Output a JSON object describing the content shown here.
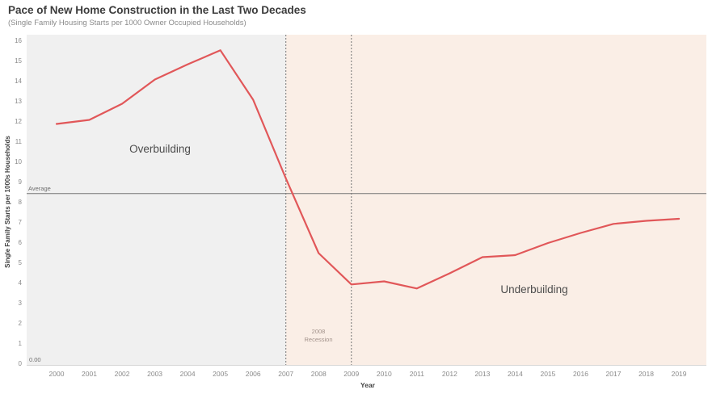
{
  "chart_data": {
    "type": "line",
    "title": "Pace of New Home Construction in the Last Two Decades",
    "subtitle": "(Single Family Housing Starts per 1000 Owner Occupied Households)",
    "xlabel": "Year",
    "ylabel": "Single Family Starts per 1000s Households",
    "x": [
      2000,
      2001,
      2002,
      2003,
      2004,
      2005,
      2006,
      2007,
      2008,
      2009,
      2010,
      2011,
      2012,
      2013,
      2014,
      2015,
      2016,
      2017,
      2018,
      2019
    ],
    "series": [
      {
        "name": "Single Family Housing Starts per 1000 Owner Occupied Households",
        "color": "#e15759",
        "values": [
          11.9,
          12.1,
          12.9,
          14.1,
          14.85,
          15.55,
          13.1,
          9.2,
          5.5,
          3.95,
          4.1,
          3.75,
          4.5,
          5.3,
          5.4,
          6.0,
          6.5,
          6.95,
          7.1,
          7.2
        ]
      }
    ],
    "ylim": [
      0,
      16
    ],
    "grid": false,
    "legend": "none",
    "reference_lines": [
      {
        "axis": "y",
        "value": 8.45,
        "label": "Average",
        "style": "solid",
        "color": "#757575"
      },
      {
        "axis": "x",
        "value": 2007,
        "style": "dashed",
        "color": "#757575"
      },
      {
        "axis": "x",
        "value": 2009,
        "style": "dashed",
        "color": "#757575"
      }
    ],
    "regions": [
      {
        "label": "Overbuilding",
        "x_start": "plot-left",
        "x_end": 2007,
        "color": "#f0f0f0"
      },
      {
        "label": "Underbuilding",
        "x_start": 2007,
        "x_end": "plot-right",
        "color": "#faeee6"
      }
    ]
  },
  "labels": {
    "overbuilding": "Overbuilding",
    "underbuilding": "Underbuilding",
    "recession_line1": "2008",
    "recession_line2": "Recession",
    "average": "Average",
    "zero": "0.00"
  },
  "x_axis": {
    "label": "Year",
    "ticks": [
      "2000",
      "2001",
      "2002",
      "2003",
      "2004",
      "2005",
      "2006",
      "2007",
      "2008",
      "2009",
      "2010",
      "2011",
      "2012",
      "2013",
      "2014",
      "2015",
      "2016",
      "2017",
      "2018",
      "2019"
    ]
  },
  "y_axis": {
    "label": "Single Family Starts per 1000s Households",
    "ticks": [
      "0",
      "1",
      "2",
      "3",
      "4",
      "5",
      "6",
      "7",
      "8",
      "9",
      "10",
      "11",
      "12",
      "13",
      "14",
      "15",
      "16"
    ]
  },
  "colors": {
    "line": "#e15759",
    "overbuilding_region": "#f0f0f0",
    "underbuilding_region": "#faeee6",
    "average_line": "#757575",
    "recession_dash": "#757575",
    "axis_line": "#d8d8d8"
  }
}
